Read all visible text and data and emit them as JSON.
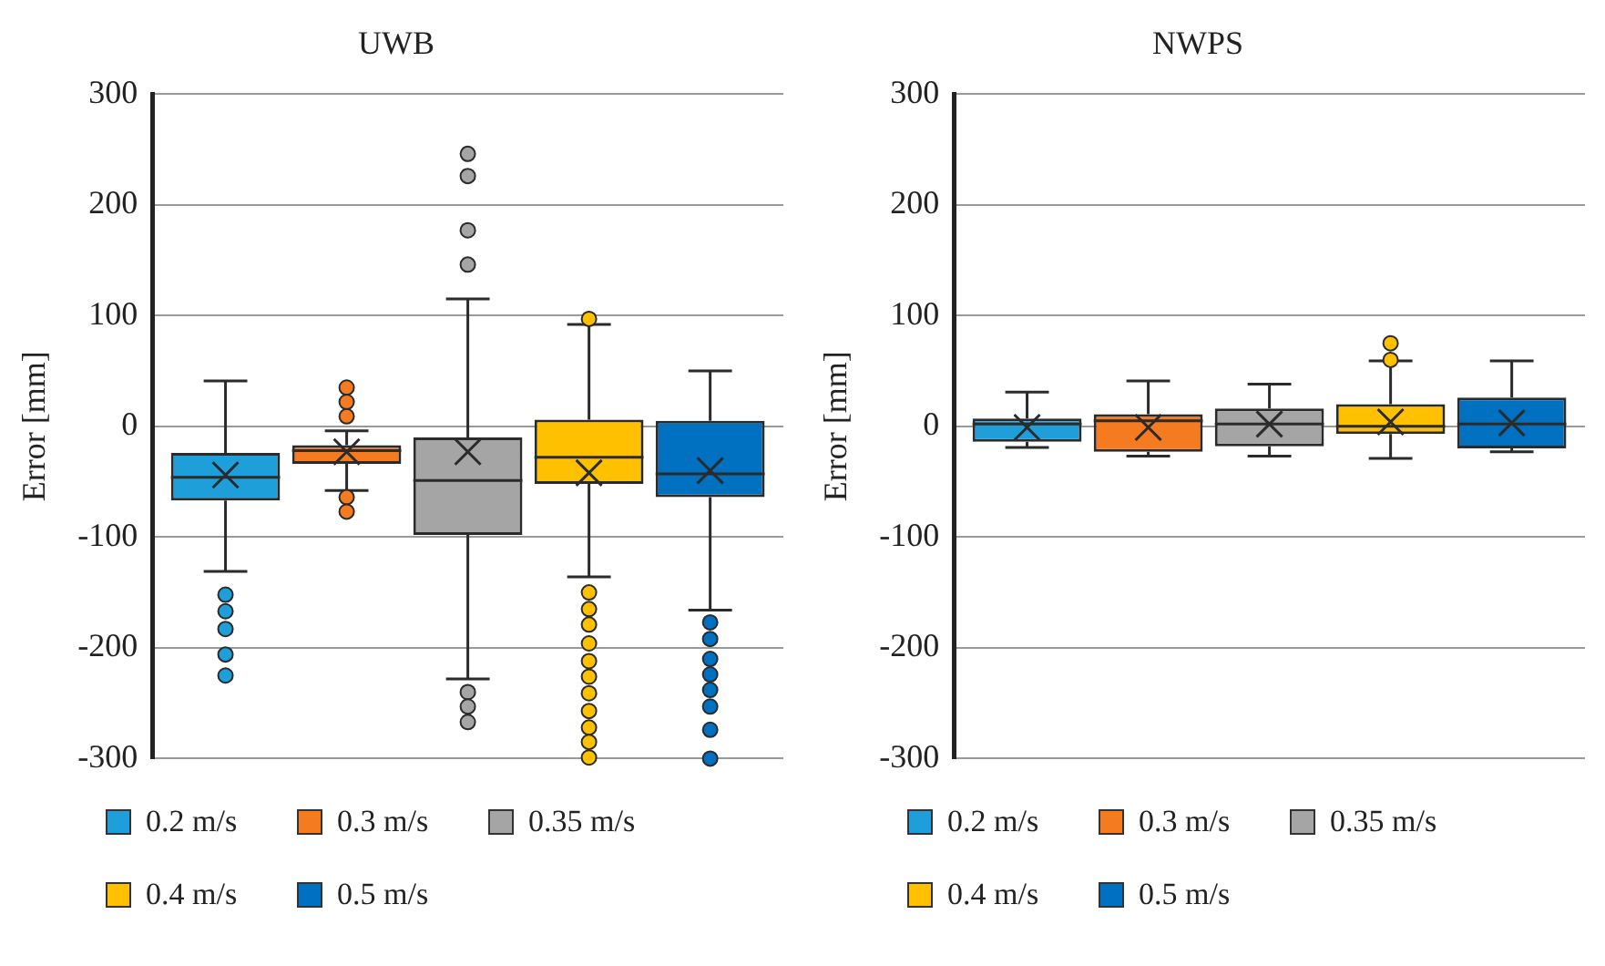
{
  "chart_data": [
    {
      "type": "box",
      "title": "UWB",
      "ylabel": "Error [mm]",
      "ylim": [
        -300,
        300
      ],
      "yticks": [
        -300,
        -200,
        -100,
        0,
        100,
        200,
        300
      ],
      "grid": "y",
      "legend": "bottom",
      "tick_labels": "y",
      "categories": [
        null
      ],
      "series": [
        {
          "name": "0.2 m/s",
          "color": "#1f9fd9",
          "boxes": [
            {
              "low": -131,
              "q1": -67,
              "median": -46,
              "q3": -24,
              "high": 41,
              "mean": -44,
              "outliers": [
                -152,
                -167,
                -183,
                -206,
                -225
              ]
            }
          ]
        },
        {
          "name": "0.3 m/s",
          "color": "#f47b20",
          "boxes": [
            {
              "low": -58,
              "q1": -34,
              "median": -22,
              "q3": -17,
              "high": -4,
              "mean": -23,
              "outliers": [
                35,
                22,
                9,
                -64,
                -77
              ]
            }
          ]
        },
        {
          "name": "0.35 m/s",
          "color": "#a5a5a5",
          "boxes": [
            {
              "low": -228,
              "q1": -98,
              "median": -49,
              "q3": -10,
              "high": 115,
              "mean": -23,
              "outliers": [
                246,
                226,
                177,
                146,
                -240,
                -253,
                -267
              ]
            }
          ]
        },
        {
          "name": "0.4 m/s",
          "color": "#ffc000",
          "boxes": [
            {
              "low": -136,
              "q1": -52,
              "median": -28,
              "q3": 6,
              "high": 92,
              "mean": -42,
              "outliers": [
                97,
                -150,
                -165,
                -179,
                -196,
                -212,
                -226,
                -241,
                -257,
                -272,
                -285,
                -299
              ]
            }
          ]
        },
        {
          "name": "0.5 m/s",
          "color": "#0070c0",
          "boxes": [
            {
              "low": -166,
              "q1": -64,
              "median": -43,
              "q3": 5,
              "high": 50,
              "mean": -40,
              "outliers": [
                -177,
                -192,
                -210,
                -224,
                -238,
                -253,
                -274,
                -300
              ]
            }
          ]
        }
      ]
    },
    {
      "type": "box",
      "title": "NWPS",
      "ylabel": "Error [mm]",
      "ylim": [
        -300,
        300
      ],
      "yticks": [
        -300,
        -200,
        -100,
        0,
        100,
        200,
        300
      ],
      "grid": "y",
      "legend": "bottom",
      "tick_labels": "y",
      "categories": [
        null
      ],
      "series": [
        {
          "name": "0.2 m/s",
          "color": "#1f9fd9",
          "boxes": [
            {
              "low": -19,
              "q1": -14,
              "median": 2,
              "q3": 7,
              "high": 31,
              "mean": -1
            }
          ]
        },
        {
          "name": "0.3 m/s",
          "color": "#f47b20",
          "boxes": [
            {
              "low": -27,
              "q1": -23,
              "median": 5,
              "q3": 11,
              "high": 41,
              "mean": -1
            }
          ]
        },
        {
          "name": "0.35 m/s",
          "color": "#a5a5a5",
          "boxes": [
            {
              "low": -27,
              "q1": -18,
              "median": 2,
              "q3": 16,
              "high": 38,
              "mean": 2
            }
          ]
        },
        {
          "name": "0.4 m/s",
          "color": "#ffc000",
          "boxes": [
            {
              "low": -29,
              "q1": -7,
              "median": 0,
              "q3": 20,
              "high": 59,
              "mean": 4,
              "outliers": [
                75,
                60
              ]
            }
          ]
        },
        {
          "name": "0.5 m/s",
          "color": "#0070c0",
          "boxes": [
            {
              "low": -23,
              "q1": -20,
              "median": 2,
              "q3": 26,
              "high": 59,
              "mean": 3
            }
          ]
        }
      ]
    }
  ]
}
